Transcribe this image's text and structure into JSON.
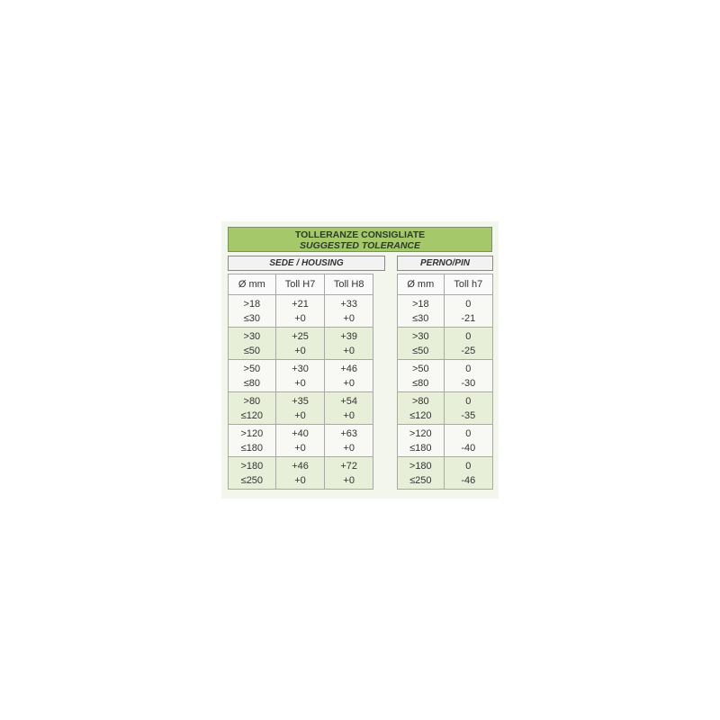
{
  "title": {
    "line1": "TOLLERANZE CONSIGLIATE",
    "line2": "SUGGESTED TOLERANCE"
  },
  "housing": {
    "label": "SEDE / HOUSING",
    "headers": [
      "Ø mm",
      "Toll H7",
      "Toll H8"
    ],
    "rows": [
      {
        "d1": ">18",
        "d2": "≤30",
        "h7a": "+21",
        "h7b": "+0",
        "h8a": "+33",
        "h8b": "+0"
      },
      {
        "d1": ">30",
        "d2": "≤50",
        "h7a": "+25",
        "h7b": "+0",
        "h8a": "+39",
        "h8b": "+0"
      },
      {
        "d1": ">50",
        "d2": "≤80",
        "h7a": "+30",
        "h7b": "+0",
        "h8a": "+46",
        "h8b": "+0"
      },
      {
        "d1": ">80",
        "d2": "≤120",
        "h7a": "+35",
        "h7b": "+0",
        "h8a": "+54",
        "h8b": "+0"
      },
      {
        "d1": ">120",
        "d2": "≤180",
        "h7a": "+40",
        "h7b": "+0",
        "h8a": "+63",
        "h8b": "+0"
      },
      {
        "d1": ">180",
        "d2": "≤250",
        "h7a": "+46",
        "h7b": "+0",
        "h8a": "+72",
        "h8b": "+0"
      }
    ]
  },
  "pin": {
    "label": "PERNO/PIN",
    "headers": [
      "Ø mm",
      "Toll h7"
    ],
    "rows": [
      {
        "d1": ">18",
        "d2": "≤30",
        "a": "0",
        "b": "-21"
      },
      {
        "d1": ">30",
        "d2": "≤50",
        "a": "0",
        "b": "-25"
      },
      {
        "d1": ">50",
        "d2": "≤80",
        "a": "0",
        "b": "-30"
      },
      {
        "d1": ">80",
        "d2": "≤120",
        "a": "0",
        "b": "-35"
      },
      {
        "d1": ">120",
        "d2": "≤180",
        "a": "0",
        "b": "-40"
      },
      {
        "d1": ">180",
        "d2": "≤250",
        "a": "0",
        "b": "-46"
      }
    ]
  },
  "colors": {
    "title_bg": "#a5c96a",
    "alt_row": "#e7efd9"
  }
}
